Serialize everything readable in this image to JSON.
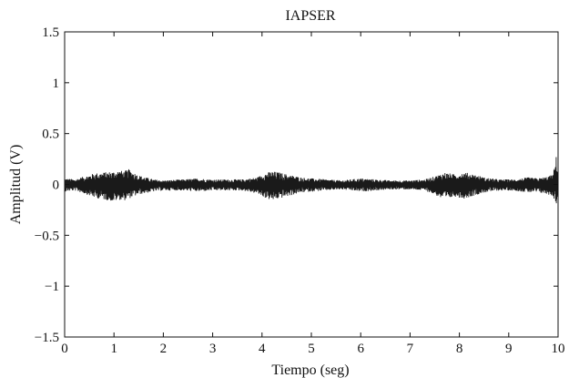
{
  "chart_data": {
    "type": "line",
    "title": "IAPSER",
    "xlabel": "Tiempo (seg)",
    "ylabel": "Amplitud (V)",
    "xlim": [
      0,
      10
    ],
    "ylim": [
      -1.5,
      1.5
    ],
    "x_ticks": [
      0,
      1,
      2,
      3,
      4,
      5,
      6,
      7,
      8,
      9,
      10
    ],
    "x_tick_labels": [
      "0",
      "1",
      "2",
      "3",
      "4",
      "5",
      "6",
      "7",
      "8",
      "9",
      "10"
    ],
    "y_ticks": [
      -1.5,
      -1,
      -0.5,
      0,
      0.5,
      1,
      1.5
    ],
    "y_tick_labels": [
      "−1.5",
      "−1",
      "−0.5",
      "0",
      "0.5",
      "1",
      "1.5"
    ],
    "grid": false,
    "line_color": "#1a1a1a",
    "series": [
      {
        "x": [
          0,
          0.2,
          0.4,
          0.6,
          0.8,
          1.0,
          1.1,
          1.2,
          1.3,
          1.5,
          1.8,
          2.0,
          2.4,
          2.7,
          3.0,
          3.3,
          3.6,
          3.9,
          4.05,
          4.2,
          4.35,
          4.5,
          4.8,
          5.0,
          5.3,
          5.6,
          6.0,
          6.3,
          6.6,
          7.0,
          7.3,
          7.5,
          7.7,
          7.9,
          8.1,
          8.3,
          8.5,
          8.8,
          9.1,
          9.4,
          9.6,
          9.8,
          9.9,
          9.97,
          10.0
        ],
        "envelope_upper": [
          0.06,
          0.05,
          0.08,
          0.11,
          0.12,
          0.13,
          0.14,
          0.13,
          0.15,
          0.09,
          0.05,
          0.04,
          0.05,
          0.06,
          0.05,
          0.05,
          0.05,
          0.07,
          0.11,
          0.13,
          0.12,
          0.1,
          0.07,
          0.06,
          0.05,
          0.04,
          0.06,
          0.05,
          0.04,
          0.04,
          0.05,
          0.08,
          0.12,
          0.1,
          0.12,
          0.1,
          0.07,
          0.05,
          0.05,
          0.07,
          0.06,
          0.08,
          0.1,
          0.3,
          0.1
        ],
        "envelope_lower": [
          -0.07,
          -0.06,
          -0.09,
          -0.13,
          -0.15,
          -0.17,
          -0.15,
          -0.16,
          -0.14,
          -0.1,
          -0.07,
          -0.06,
          -0.06,
          -0.07,
          -0.06,
          -0.06,
          -0.06,
          -0.09,
          -0.13,
          -0.16,
          -0.14,
          -0.12,
          -0.08,
          -0.07,
          -0.06,
          -0.05,
          -0.07,
          -0.06,
          -0.05,
          -0.05,
          -0.06,
          -0.1,
          -0.16,
          -0.12,
          -0.14,
          -0.11,
          -0.08,
          -0.06,
          -0.06,
          -0.08,
          -0.08,
          -0.1,
          -0.12,
          -0.2,
          -0.12
        ]
      }
    ]
  }
}
